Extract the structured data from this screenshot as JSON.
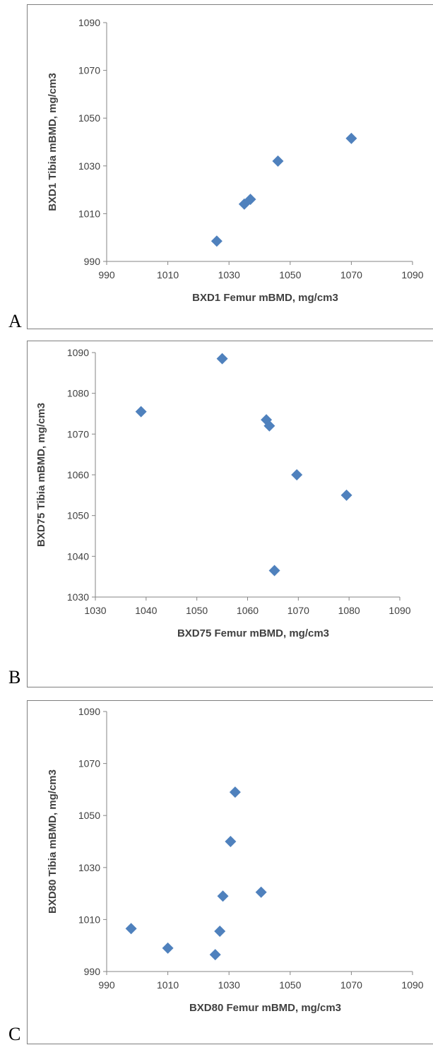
{
  "panels": [
    {
      "letter": "A"
    },
    {
      "letter": "B"
    },
    {
      "letter": "C"
    }
  ],
  "chart_data": [
    {
      "type": "scatter",
      "xlabel": "BXD1 Femur mBMD, mg/cm3",
      "ylabel": "BXD1 Tibia mBMD, mg/cm3",
      "xlim": [
        990,
        1090
      ],
      "ylim": [
        990,
        1090
      ],
      "xticks": [
        990,
        1010,
        1030,
        1050,
        1070,
        1090
      ],
      "yticks": [
        990,
        1010,
        1030,
        1050,
        1070,
        1090
      ],
      "marker_color": "#4f81bd",
      "points": [
        [
          1026,
          998.5
        ],
        [
          1035,
          1014
        ],
        [
          1037,
          1016
        ],
        [
          1046,
          1032
        ],
        [
          1070,
          1041.5
        ]
      ]
    },
    {
      "type": "scatter",
      "xlabel": "BXD75 Femur mBMD, mg/cm3",
      "ylabel": "BXD75 Tibia mBMD, mg/cm3",
      "xlim": [
        1030,
        1090
      ],
      "ylim": [
        1030,
        1090
      ],
      "xticks": [
        1030,
        1040,
        1050,
        1060,
        1070,
        1080,
        1090
      ],
      "yticks": [
        1030,
        1040,
        1050,
        1060,
        1070,
        1080,
        1090
      ],
      "marker_color": "#4f81bd",
      "points": [
        [
          1039,
          1075.5
        ],
        [
          1055,
          1088.5
        ],
        [
          1063.7,
          1073.5
        ],
        [
          1064.3,
          1072
        ],
        [
          1069.7,
          1060
        ],
        [
          1065.3,
          1036.5
        ],
        [
          1079.5,
          1055
        ]
      ]
    },
    {
      "type": "scatter",
      "xlabel": "BXD80 Femur mBMD, mg/cm3",
      "ylabel": "BXD80 Tibia mBMD, mg/cm3",
      "xlim": [
        990,
        1090
      ],
      "ylim": [
        990,
        1090
      ],
      "xticks": [
        990,
        1010,
        1030,
        1050,
        1070,
        1090
      ],
      "yticks": [
        990,
        1010,
        1030,
        1050,
        1070,
        1090
      ],
      "marker_color": "#4f81bd",
      "points": [
        [
          998,
          1006.5
        ],
        [
          1010,
          999
        ],
        [
          1025.5,
          996.5
        ],
        [
          1027,
          1005.5
        ],
        [
          1028,
          1019
        ],
        [
          1030.5,
          1040
        ],
        [
          1032,
          1059
        ],
        [
          1040.5,
          1020.5
        ]
      ]
    }
  ]
}
